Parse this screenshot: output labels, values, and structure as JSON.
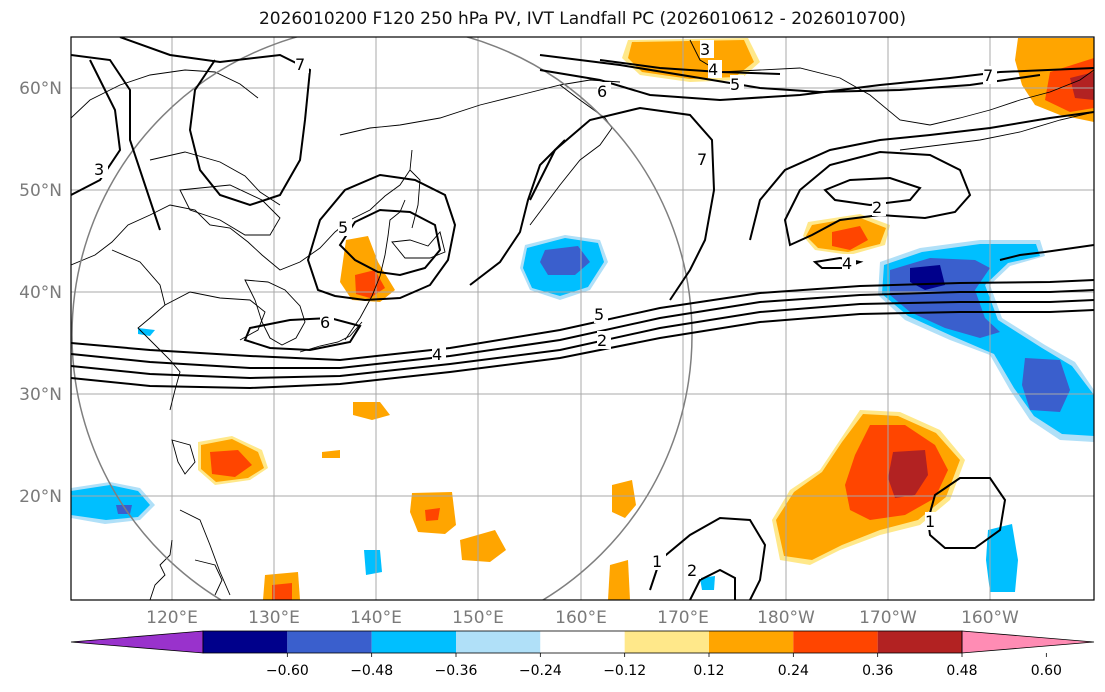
{
  "title": "2026010200 F120 250 hPa PV, IVT Landfall PC (2026010612 - 2026010700)",
  "lat_labels": [
    "60°N",
    "50°N",
    "40°N",
    "30°N",
    "20°N"
  ],
  "lon_labels": [
    "120°E",
    "130°E",
    "140°E",
    "150°E",
    "160°E",
    "170°E",
    "180°W",
    "170°W",
    "160°W"
  ],
  "contour_labels": [
    "3",
    "4",
    "5",
    "6",
    "7",
    "2",
    "1"
  ],
  "colorbar": {
    "ticks": [
      "−0.60",
      "−0.48",
      "−0.36",
      "−0.24",
      "−0.12",
      "0.12",
      "0.24",
      "0.36",
      "0.48",
      "0.60"
    ],
    "colors": [
      "#9932cc",
      "#00008b",
      "#3a5fcd",
      "#00bfff",
      "#b0e0f8",
      "#ffffff",
      "#ffe88a",
      "#ffa500",
      "#ff4500",
      "#b22222",
      "#ff8cb4"
    ]
  }
}
